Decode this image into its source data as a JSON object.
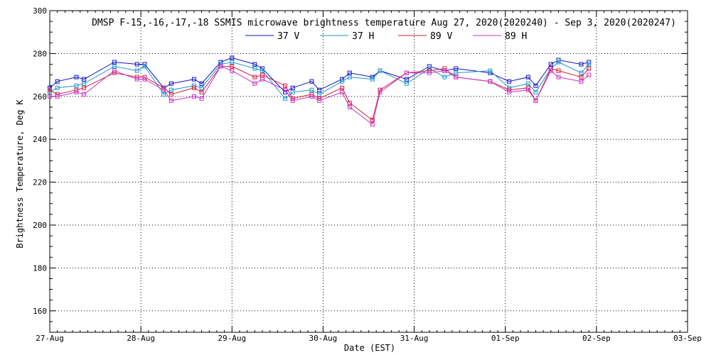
{
  "chart_data": {
    "type": "line",
    "title": "DMSP F-15,-16,-17,-18 SSMIS microwave brightness temperature Aug 27, 2020(2020240) - Sep  3, 2020(2020247)",
    "xlabel": "Date (EST)",
    "ylabel": "Brightness Temperature, Deg K",
    "xlim": [
      "2020-08-27",
      "2020-09-03"
    ],
    "ylim": [
      150,
      300
    ],
    "x_ticks": [
      "27-Aug",
      "28-Aug",
      "29-Aug",
      "30-Aug",
      "31-Aug",
      "01-Sep",
      "02-Sep",
      "03-Sep"
    ],
    "y_ticks": [
      160,
      180,
      200,
      220,
      240,
      260,
      280,
      300
    ],
    "grid": true,
    "legend_position": "top-center",
    "series": [
      {
        "name": "37 V",
        "color": "#1010c8",
        "points": [
          [
            "2020-08-27T00:00",
            264
          ],
          [
            "2020-08-27T02:00",
            267
          ],
          [
            "2020-08-27T07:00",
            269
          ],
          [
            "2020-08-27T09:00",
            268
          ],
          [
            "2020-08-27T17:00",
            276
          ],
          [
            "2020-08-27T23:00",
            275
          ],
          [
            "2020-08-28T01:00",
            275
          ],
          [
            "2020-08-28T06:00",
            264
          ],
          [
            "2020-08-28T08:00",
            266
          ],
          [
            "2020-08-28T14:00",
            268
          ],
          [
            "2020-08-28T16:00",
            266
          ],
          [
            "2020-08-28T21:00",
            276
          ],
          [
            "2020-08-29T00:00",
            278
          ],
          [
            "2020-08-29T06:00",
            275
          ],
          [
            "2020-08-29T08:00",
            273
          ],
          [
            "2020-08-29T14:00",
            262
          ],
          [
            "2020-08-29T16:00",
            264
          ],
          [
            "2020-08-29T21:00",
            267
          ],
          [
            "2020-08-29T23:00",
            263
          ],
          [
            "2020-08-30T05:00",
            268
          ],
          [
            "2020-08-30T07:00",
            271
          ],
          [
            "2020-08-30T13:00",
            269
          ],
          [
            "2020-08-30T15:00",
            272
          ],
          [
            "2020-08-30T22:00",
            268
          ],
          [
            "2020-08-31T04:00",
            274
          ],
          [
            "2020-08-31T08:00",
            272
          ],
          [
            "2020-08-31T11:00",
            273
          ],
          [
            "2020-08-31T20:00",
            271
          ],
          [
            "2020-09-01T01:00",
            267
          ],
          [
            "2020-09-01T06:00",
            269
          ],
          [
            "2020-09-01T08:00",
            265
          ],
          [
            "2020-09-01T12:00",
            275
          ],
          [
            "2020-09-01T14:00",
            277
          ],
          [
            "2020-09-01T20:00",
            275
          ],
          [
            "2020-09-01T22:00",
            276
          ]
        ]
      },
      {
        "name": "37 H",
        "color": "#1e96d2",
        "points": [
          [
            "2020-08-27T00:00",
            262
          ],
          [
            "2020-08-27T02:00",
            264
          ],
          [
            "2020-08-27T07:00",
            265
          ],
          [
            "2020-08-27T09:00",
            266
          ],
          [
            "2020-08-27T17:00",
            274
          ],
          [
            "2020-08-27T23:00",
            272
          ],
          [
            "2020-08-28T01:00",
            274
          ],
          [
            "2020-08-28T06:00",
            261
          ],
          [
            "2020-08-28T08:00",
            263
          ],
          [
            "2020-08-28T14:00",
            265
          ],
          [
            "2020-08-28T16:00",
            264
          ],
          [
            "2020-08-28T21:00",
            275
          ],
          [
            "2020-08-29T00:00",
            276
          ],
          [
            "2020-08-29T06:00",
            273
          ],
          [
            "2020-08-29T08:00",
            272
          ],
          [
            "2020-08-29T14:00",
            259
          ],
          [
            "2020-08-29T16:00",
            262
          ],
          [
            "2020-08-29T21:00",
            263
          ],
          [
            "2020-08-29T23:00",
            261
          ],
          [
            "2020-08-30T05:00",
            267
          ],
          [
            "2020-08-30T07:00",
            269
          ],
          [
            "2020-08-30T13:00",
            268
          ],
          [
            "2020-08-30T15:00",
            272
          ],
          [
            "2020-08-30T22:00",
            266
          ],
          [
            "2020-08-31T04:00",
            273
          ],
          [
            "2020-08-31T08:00",
            269
          ],
          [
            "2020-08-31T11:00",
            271
          ],
          [
            "2020-08-31T20:00",
            272
          ],
          [
            "2020-09-01T01:00",
            264
          ],
          [
            "2020-09-01T06:00",
            266
          ],
          [
            "2020-09-01T08:00",
            262
          ],
          [
            "2020-09-01T12:00",
            273
          ],
          [
            "2020-09-01T14:00",
            276
          ],
          [
            "2020-09-01T20:00",
            271
          ],
          [
            "2020-09-01T22:00",
            275
          ]
        ]
      },
      {
        "name": "89 V",
        "color": "#d21e3c",
        "points": [
          [
            "2020-08-27T00:00",
            263
          ],
          [
            "2020-08-27T02:00",
            261
          ],
          [
            "2020-08-27T07:00",
            263
          ],
          [
            "2020-08-27T09:00",
            264
          ],
          [
            "2020-08-27T17:00",
            271
          ],
          [
            "2020-08-27T23:00",
            269
          ],
          [
            "2020-08-28T01:00",
            269
          ],
          [
            "2020-08-28T06:00",
            264
          ],
          [
            "2020-08-28T08:00",
            261
          ],
          [
            "2020-08-28T14:00",
            264
          ],
          [
            "2020-08-28T16:00",
            262
          ],
          [
            "2020-08-28T21:00",
            274
          ],
          [
            "2020-08-29T00:00",
            274
          ],
          [
            "2020-08-29T06:00",
            269
          ],
          [
            "2020-08-29T08:00",
            270
          ],
          [
            "2020-08-29T14:00",
            265
          ],
          [
            "2020-08-29T16:00",
            259
          ],
          [
            "2020-08-29T21:00",
            261
          ],
          [
            "2020-08-29T23:00",
            259
          ],
          [
            "2020-08-30T05:00",
            264
          ],
          [
            "2020-08-30T07:00",
            257
          ],
          [
            "2020-08-30T13:00",
            249
          ],
          [
            "2020-08-30T15:00",
            263
          ],
          [
            "2020-08-30T22:00",
            271
          ],
          [
            "2020-08-31T04:00",
            272
          ],
          [
            "2020-08-31T08:00",
            273
          ],
          [
            "2020-08-31T11:00",
            269
          ],
          [
            "2020-08-31T20:00",
            267
          ],
          [
            "2020-09-01T01:00",
            263
          ],
          [
            "2020-09-01T06:00",
            264
          ],
          [
            "2020-09-01T08:00",
            258
          ],
          [
            "2020-09-01T12:00",
            273
          ],
          [
            "2020-09-01T14:00",
            272
          ],
          [
            "2020-09-01T20:00",
            269
          ],
          [
            "2020-09-01T22:00",
            273
          ]
        ]
      },
      {
        "name": "89 H",
        "color": "#c832c8",
        "points": [
          [
            "2020-08-27T00:00",
            260
          ],
          [
            "2020-08-27T02:00",
            260
          ],
          [
            "2020-08-27T07:00",
            262
          ],
          [
            "2020-08-27T09:00",
            261
          ],
          [
            "2020-08-27T17:00",
            272
          ],
          [
            "2020-08-27T23:00",
            268
          ],
          [
            "2020-08-28T01:00",
            268
          ],
          [
            "2020-08-28T06:00",
            263
          ],
          [
            "2020-08-28T08:00",
            258
          ],
          [
            "2020-08-28T14:00",
            260
          ],
          [
            "2020-08-28T16:00",
            259
          ],
          [
            "2020-08-28T21:00",
            274
          ],
          [
            "2020-08-29T00:00",
            272
          ],
          [
            "2020-08-29T06:00",
            266
          ],
          [
            "2020-08-29T08:00",
            268
          ],
          [
            "2020-08-29T14:00",
            263
          ],
          [
            "2020-08-29T16:00",
            258
          ],
          [
            "2020-08-29T21:00",
            260
          ],
          [
            "2020-08-29T23:00",
            258
          ],
          [
            "2020-08-30T05:00",
            262
          ],
          [
            "2020-08-30T07:00",
            255
          ],
          [
            "2020-08-30T13:00",
            247
          ],
          [
            "2020-08-30T15:00",
            262
          ],
          [
            "2020-08-30T22:00",
            271
          ],
          [
            "2020-08-31T04:00",
            271
          ],
          [
            "2020-08-31T08:00",
            272
          ],
          [
            "2020-08-31T11:00",
            269
          ],
          [
            "2020-08-31T20:00",
            267
          ],
          [
            "2020-09-01T01:00",
            262
          ],
          [
            "2020-09-01T06:00",
            263
          ],
          [
            "2020-09-01T08:00",
            258
          ],
          [
            "2020-09-01T12:00",
            272
          ],
          [
            "2020-09-01T14:00",
            269
          ],
          [
            "2020-09-01T20:00",
            267
          ],
          [
            "2020-09-01T22:00",
            270
          ]
        ]
      }
    ]
  }
}
